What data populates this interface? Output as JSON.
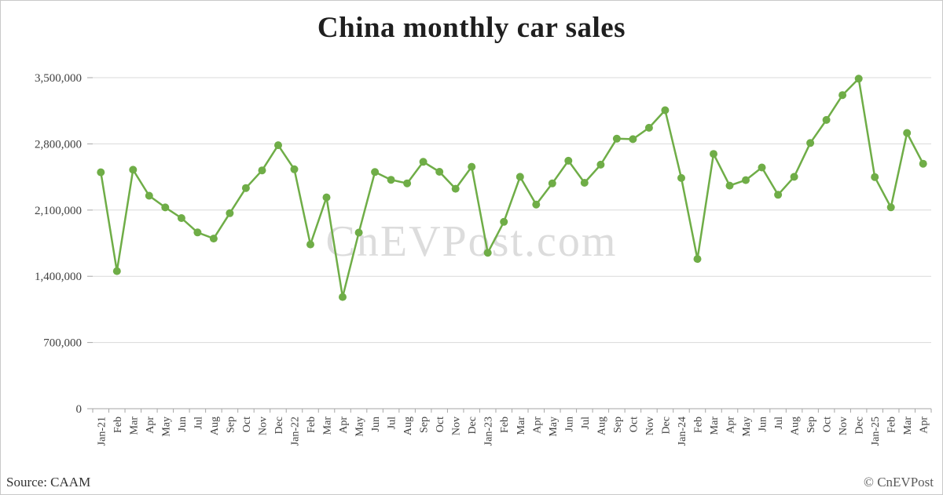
{
  "title": "China monthly car sales",
  "watermark": "CnEVPost.com",
  "footer": {
    "source": "Source: CAAM",
    "copyright": "© CnEVPost"
  },
  "colors": {
    "series": "#6fad47",
    "grid": "#d9d9d9",
    "axis": "#a6a6a6",
    "text": "#404040",
    "watermark": "#dcdcdc"
  },
  "chart_data": {
    "type": "line",
    "title": "China monthly car sales",
    "xlabel": "",
    "ylabel": "",
    "ylim": [
      0,
      3500000
    ],
    "grid": "horizontal",
    "legend": "none",
    "marker": "circle",
    "yticks": [
      {
        "value": 0,
        "label": "0"
      },
      {
        "value": 700000,
        "label": "700,000"
      },
      {
        "value": 1400000,
        "label": "1,400,000"
      },
      {
        "value": 2100000,
        "label": "2,100,000"
      },
      {
        "value": 2800000,
        "label": "2,800,000"
      },
      {
        "value": 3500000,
        "label": "3,500,000"
      }
    ],
    "x": [
      "Jan-21",
      "Feb",
      "Mar",
      "Apr",
      "May",
      "Jun",
      "Jul",
      "Aug",
      "Sep",
      "Oct",
      "Nov",
      "Dec",
      "Jan-22",
      "Feb",
      "Mar",
      "Apr",
      "May",
      "Jun",
      "Jul",
      "Aug",
      "Sep",
      "Oct",
      "Nov",
      "Dec",
      "Jan-23",
      "Feb",
      "Mar",
      "Apr",
      "May",
      "Jun",
      "Jul",
      "Aug",
      "Sep",
      "Oct",
      "Nov",
      "Dec",
      "Jan-24",
      "Feb",
      "Mar",
      "Apr",
      "May",
      "Jun",
      "Jul",
      "Aug",
      "Sep",
      "Oct",
      "Nov",
      "Dec",
      "Jan-25",
      "Feb",
      "Mar",
      "Apr"
    ],
    "values": [
      2500000,
      1455000,
      2526000,
      2252000,
      2128000,
      2015000,
      1864000,
      1799000,
      2067000,
      2333000,
      2520000,
      2786000,
      2531000,
      1737000,
      2234000,
      1181000,
      1862000,
      2502000,
      2420000,
      2383000,
      2610000,
      2505000,
      2326000,
      2558000,
      1649000,
      1976000,
      2452000,
      2159000,
      2382000,
      2622000,
      2389000,
      2580000,
      2855000,
      2850000,
      2970000,
      3156000,
      2439000,
      1583000,
      2694000,
      2359000,
      2417000,
      2550000,
      2262000,
      2452000,
      2809000,
      3053000,
      3316000,
      3489000,
      2449000,
      2129000,
      2915000,
      2590000
    ]
  }
}
